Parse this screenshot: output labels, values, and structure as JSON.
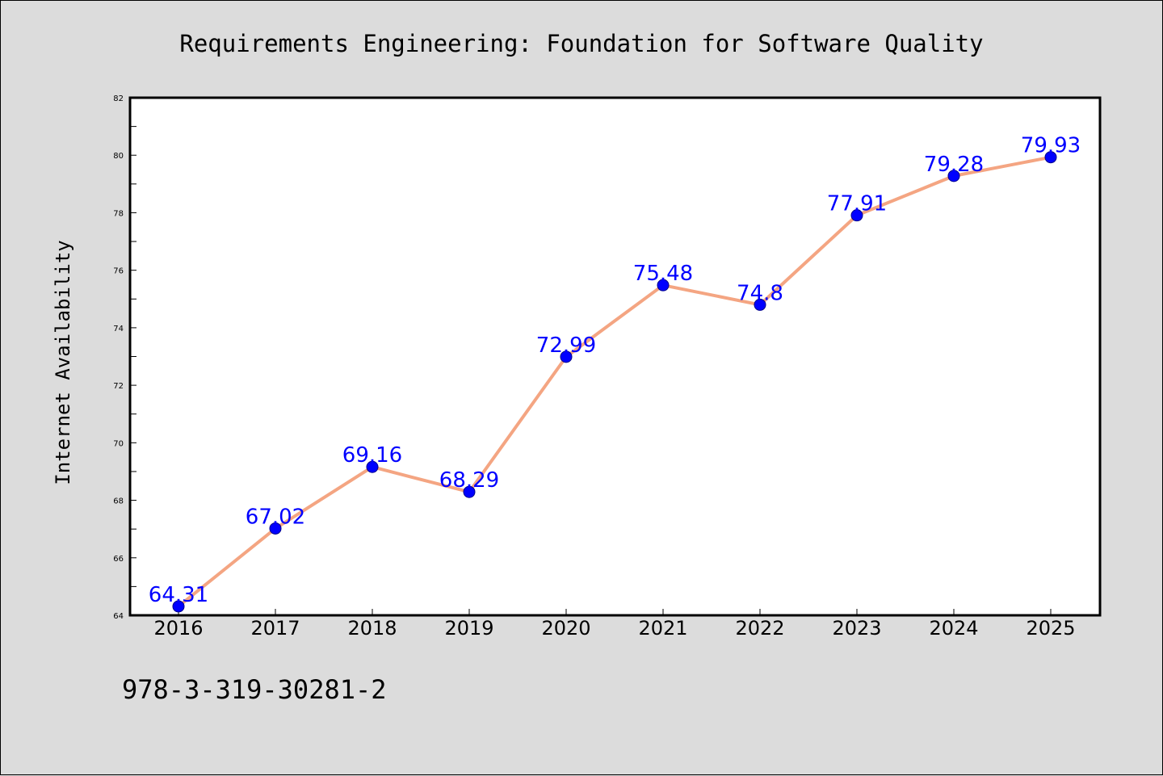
{
  "chart_data": {
    "type": "line",
    "title": "Requirements Engineering: Foundation for Software Quality",
    "xlabel": "",
    "ylabel": "Internet Availability",
    "categories": [
      "2016",
      "2017",
      "2018",
      "2019",
      "2020",
      "2021",
      "2022",
      "2023",
      "2024",
      "2025"
    ],
    "series": [
      {
        "values": [
          64.31,
          67.02,
          69.16,
          68.29,
          72.99,
          75.48,
          74.8,
          77.91,
          79.28,
          79.93
        ],
        "labels": [
          "64.31",
          "67.02",
          "69.16",
          "68.29",
          "72.99",
          "75.48",
          "74.8",
          "77.91",
          "79.28",
          "79.93"
        ]
      }
    ],
    "ylim": [
      64,
      82
    ],
    "y_ticks": [
      "64",
      "66",
      "68",
      "70",
      "72",
      "74",
      "76",
      "78",
      "80",
      "82"
    ],
    "grid": false,
    "line_color": "#f4a582",
    "marker_color": "#0000ff",
    "label_color": "#0000ff",
    "background_color": "#dcdcdc",
    "plot_background_color": "#ffffff"
  },
  "footer": {
    "code": "978-3-319-30281-2"
  }
}
